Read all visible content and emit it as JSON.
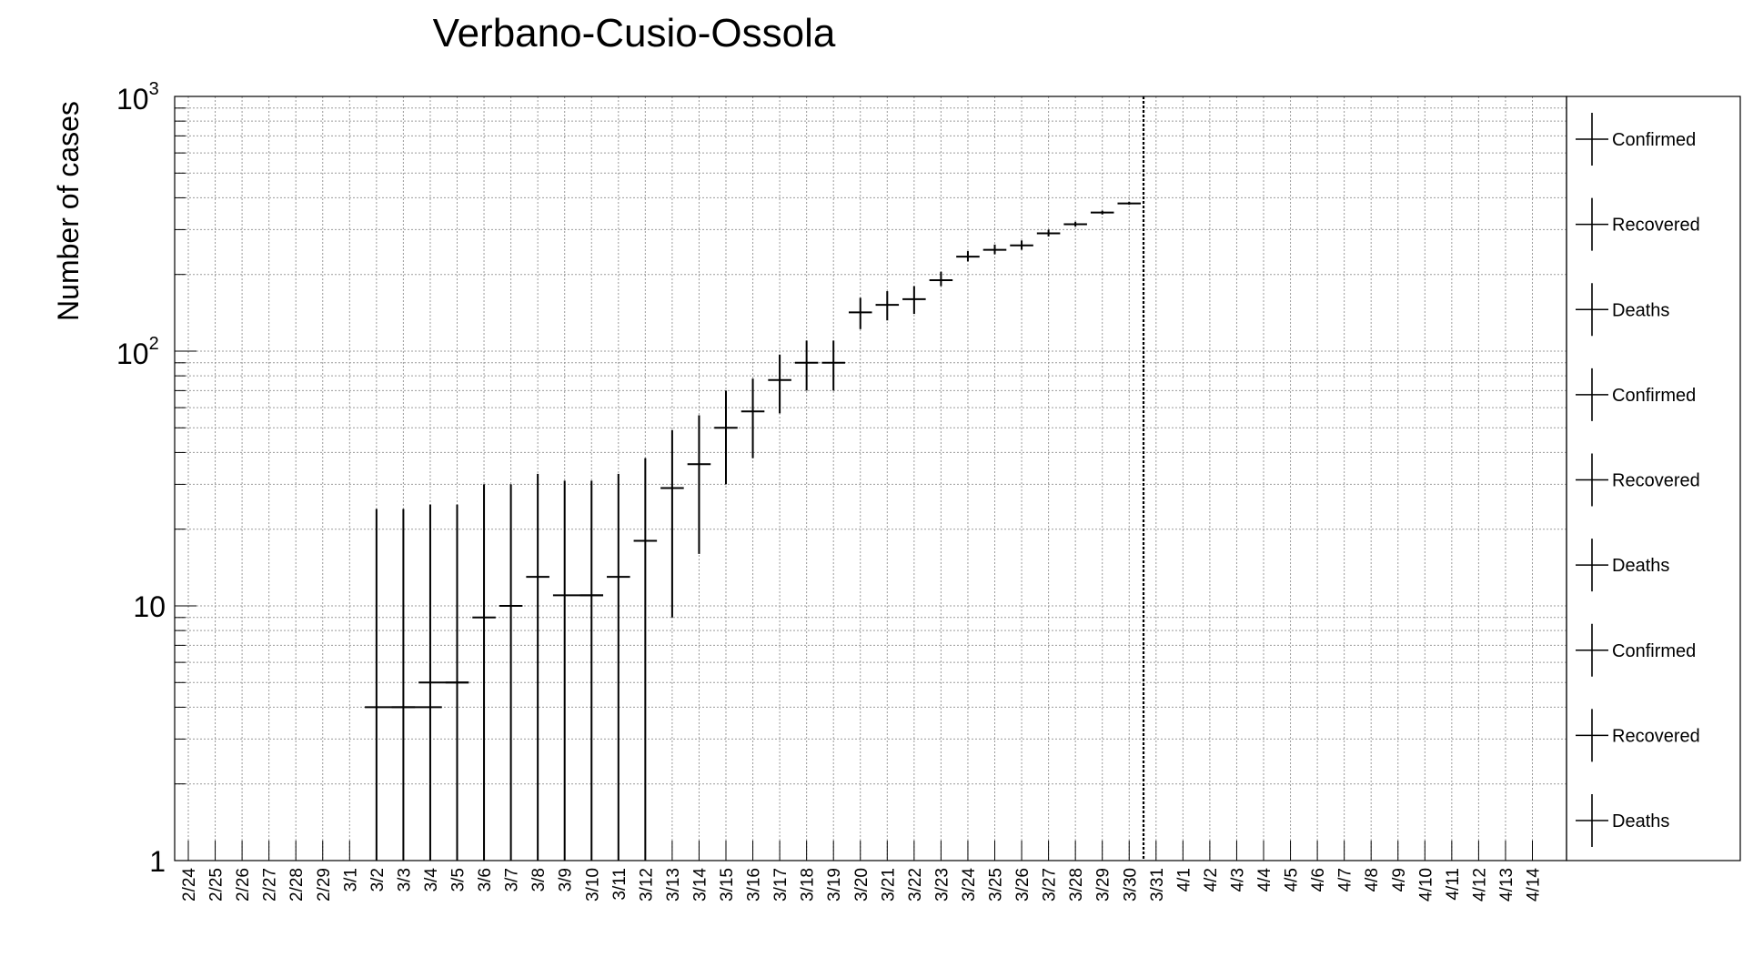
{
  "chart_data": {
    "type": "scatter",
    "title": "Verbano-Cusio-Ossola",
    "xlabel": "",
    "ylabel": "Number of cases",
    "y_scale": "log",
    "ylim": [
      1,
      1000
    ],
    "y_tick_labels": [
      {
        "value": 1,
        "base": "1",
        "exp": ""
      },
      {
        "value": 10,
        "base": "10",
        "exp": ""
      },
      {
        "value": 100,
        "base": "10",
        "exp": "2"
      },
      {
        "value": 1000,
        "base": "10",
        "exp": "3"
      }
    ],
    "grid": true,
    "legend_position": "right",
    "categories": [
      "2/24",
      "2/25",
      "2/26",
      "2/27",
      "2/28",
      "2/29",
      "3/1",
      "3/2",
      "3/3",
      "3/4",
      "3/5",
      "3/6",
      "3/7",
      "3/8",
      "3/9",
      "3/10",
      "3/11",
      "3/12",
      "3/13",
      "3/14",
      "3/15",
      "3/16",
      "3/17",
      "3/18",
      "3/19",
      "3/20",
      "3/21",
      "3/22",
      "3/23",
      "3/24",
      "3/25",
      "3/26",
      "3/27",
      "3/28",
      "3/29",
      "3/30",
      "3/31",
      "4/1",
      "4/2",
      "4/3",
      "4/4",
      "4/5",
      "4/6",
      "4/7",
      "4/8",
      "4/9",
      "4/10",
      "4/11",
      "4/12",
      "4/13",
      "4/14"
    ],
    "vertical_marker": "3/30",
    "series": [
      {
        "name": "Confirmed",
        "points": [
          {
            "x": "3/2",
            "y": 4,
            "x_span": [
              "3/2",
              "3/3"
            ],
            "err": [
              1,
              24
            ]
          },
          {
            "x": "3/3",
            "y": 4,
            "x_span": [
              "3/3",
              "3/4"
            ],
            "err": [
              1,
              24
            ]
          },
          {
            "x": "3/4",
            "y": 5,
            "x_span": [
              "3/4",
              "3/5"
            ],
            "err": [
              1,
              25
            ]
          },
          {
            "x": "3/5",
            "y": 5,
            "x_span": [
              "3/5",
              "3/5"
            ],
            "err": [
              1,
              25
            ]
          },
          {
            "x": "3/6",
            "y": 9,
            "x_span": [
              "3/6",
              "3/6"
            ],
            "err": [
              1,
              30
            ]
          },
          {
            "x": "3/7",
            "y": 10,
            "x_span": [
              "3/7",
              "3/7"
            ],
            "err": [
              1,
              30
            ]
          },
          {
            "x": "3/8",
            "y": 13,
            "x_span": [
              "3/8",
              "3/8"
            ],
            "err": [
              1,
              33
            ]
          },
          {
            "x": "3/9",
            "y": 11,
            "x_span": [
              "3/9",
              "3/10"
            ],
            "err": [
              1,
              31
            ]
          },
          {
            "x": "3/10",
            "y": 11,
            "x_span": [
              "3/10",
              "3/10"
            ],
            "err": [
              1,
              31
            ]
          },
          {
            "x": "3/11",
            "y": 13,
            "x_span": [
              "3/11",
              "3/11"
            ],
            "err": [
              1,
              33
            ]
          },
          {
            "x": "3/12",
            "y": 18,
            "x_span": [
              "3/12",
              "3/12"
            ],
            "err": [
              1,
              38
            ]
          },
          {
            "x": "3/13",
            "y": 29,
            "x_span": [
              "3/13",
              "3/13"
            ],
            "err": [
              9,
              49
            ]
          },
          {
            "x": "3/14",
            "y": 36,
            "x_span": [
              "3/14",
              "3/14"
            ],
            "err": [
              16,
              56
            ]
          },
          {
            "x": "3/15",
            "y": 50,
            "x_span": [
              "3/15",
              "3/15"
            ],
            "err": [
              30,
              70
            ]
          },
          {
            "x": "3/16",
            "y": 58,
            "x_span": [
              "3/16",
              "3/16"
            ],
            "err": [
              38,
              78
            ]
          },
          {
            "x": "3/17",
            "y": 77,
            "x_span": [
              "3/17",
              "3/17"
            ],
            "err": [
              57,
              97
            ]
          },
          {
            "x": "3/18",
            "y": 90,
            "x_span": [
              "3/18",
              "3/18"
            ],
            "err": [
              70,
              110
            ]
          },
          {
            "x": "3/19",
            "y": 90,
            "x_span": [
              "3/19",
              "3/19"
            ],
            "err": [
              70,
              110
            ]
          },
          {
            "x": "3/20",
            "y": 142,
            "x_span": [
              "3/20",
              "3/20"
            ],
            "err": [
              122,
              162
            ]
          },
          {
            "x": "3/21",
            "y": 152,
            "x_span": [
              "3/21",
              "3/21"
            ],
            "err": [
              132,
              172
            ]
          },
          {
            "x": "3/22",
            "y": 160,
            "x_span": [
              "3/22",
              "3/22"
            ],
            "err": [
              140,
              180
            ]
          },
          {
            "x": "3/23",
            "y": 190,
            "x_span": [
              "3/23",
              "3/23"
            ],
            "err": [
              180,
              205
            ]
          },
          {
            "x": "3/24",
            "y": 235,
            "x_span": [
              "3/24",
              "3/24"
            ],
            "err": [
              225,
              247
            ]
          },
          {
            "x": "3/25",
            "y": 250,
            "x_span": [
              "3/25",
              "3/25"
            ],
            "err": [
              240,
              262
            ]
          },
          {
            "x": "3/26",
            "y": 260,
            "x_span": [
              "3/26",
              "3/26"
            ],
            "err": [
              250,
              272
            ]
          },
          {
            "x": "3/27",
            "y": 290,
            "x_span": [
              "3/27",
              "3/27"
            ],
            "err": [
              282,
              300
            ]
          },
          {
            "x": "3/28",
            "y": 315,
            "x_span": [
              "3/28",
              "3/28"
            ],
            "err": [
              308,
              322
            ]
          },
          {
            "x": "3/29",
            "y": 350,
            "x_span": [
              "3/29",
              "3/29"
            ],
            "err": [
              344,
              356
            ]
          },
          {
            "x": "3/30",
            "y": 380,
            "x_span": [
              "3/30",
              "3/30"
            ],
            "err": [
              376,
              386
            ]
          }
        ]
      }
    ],
    "legend_entries": [
      "Confirmed",
      "Recovered",
      "Deaths",
      "Confirmed",
      "Recovered",
      "Deaths",
      "Confirmed",
      "Recovered",
      "Deaths"
    ]
  }
}
